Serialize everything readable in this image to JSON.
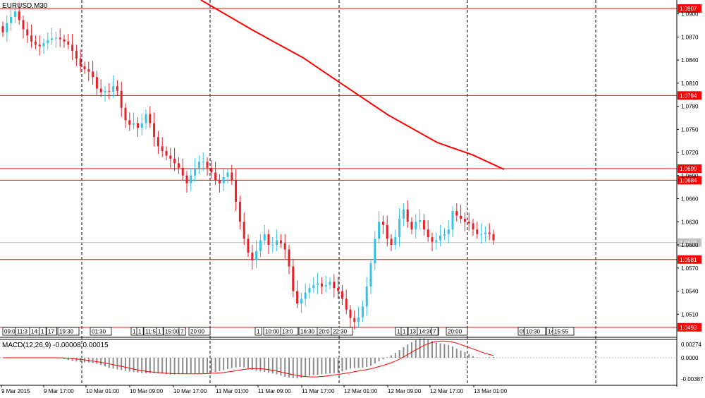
{
  "header": {
    "symbol_timeframe": "EURUSD,M30"
  },
  "macd": {
    "label": "MACD(12,26,9) -0.00008 0.00015"
  },
  "colors": {
    "bull": "#36c3e3",
    "bear": "#e8202a",
    "line": "#ff0000",
    "grid": "#000000",
    "macd_hist": "#8c8c8c",
    "macd_signal": "#ff0000"
  },
  "chart_data": {
    "type": "candlestick",
    "title": "EURUSD,M30",
    "price_scale": [
      "1.0900",
      "1.0870",
      "1.0840",
      "1.0810",
      "1.0780",
      "1.0750",
      "1.0720",
      "1.0690",
      "1.0660",
      "1.0630",
      "1.0600",
      "1.0570",
      "1.0540",
      "1.0510"
    ],
    "ylim": [
      1.048,
      1.0918
    ],
    "current_price": "1.0603",
    "horizontal_lines": [
      {
        "label": "1.0907",
        "value": 1.0907
      },
      {
        "label": "1.0794",
        "value": 1.0794
      },
      {
        "label": "1.0699",
        "value": 1.0699
      },
      {
        "label": "1.0684",
        "value": 1.0684
      },
      {
        "label": "1.0581",
        "value": 1.0581
      },
      {
        "label": "1.0493",
        "value": 1.0493
      }
    ],
    "time_labels": [
      "9 Mar 2015",
      "9 Mar 17:00",
      "10 Mar 01:00",
      "10 Mar 09:00",
      "10 Mar 17:00",
      "11 Mar 01:00",
      "11 Mar 09:00",
      "11 Mar 17:00",
      "12 Mar 01:00",
      "12 Mar 09:00",
      "12 Mar 17:00",
      "13 Mar 01:00"
    ],
    "macd_scale": [
      "0.00274",
      "0.0000",
      "-0.00387"
    ],
    "event_labels": [
      "09:00",
      "11:3",
      "14:",
      "1",
      "17",
      "19:30",
      "01:30",
      "1",
      "1",
      "11:5",
      "1",
      "15:00",
      "7",
      "20:00",
      "1",
      "10:00",
      "13:0",
      "16:30",
      "20:0",
      "22:30",
      "1",
      "1",
      "13",
      "14:30",
      "7",
      "20:00",
      "09",
      "10:30",
      "14",
      "15:55"
    ],
    "closes": [
      1.0876,
      1.0888,
      1.0896,
      1.0903,
      1.0892,
      1.088,
      1.0872,
      1.0864,
      1.086,
      1.0858,
      1.0862,
      1.0866,
      1.0868,
      1.0869,
      1.0867,
      1.0864,
      1.086,
      1.0852,
      1.0842,
      1.0832,
      1.0828,
      1.0825,
      1.0818,
      1.0803,
      1.0798,
      1.08,
      1.0799,
      1.0806,
      1.08,
      1.0778,
      1.0762,
      1.0756,
      1.0758,
      1.0752,
      1.0758,
      1.077,
      1.0758,
      1.074,
      1.0728,
      1.0722,
      1.0716,
      1.0712,
      1.0706,
      1.07,
      1.069,
      1.068,
      1.069,
      1.0698,
      1.0708,
      1.0708,
      1.07,
      1.0694,
      1.0684,
      1.068,
      1.0688,
      1.0694,
      1.0684,
      1.0656,
      1.063,
      1.0608,
      1.059,
      1.058,
      1.0592,
      1.0606,
      1.0614,
      1.06,
      1.06,
      1.0606,
      1.0602,
      1.0594,
      1.0572,
      1.054,
      1.0524,
      1.053,
      1.0538,
      1.0544,
      1.0548,
      1.055,
      1.0546,
      1.0548,
      1.0552,
      1.0544,
      1.054,
      1.053,
      1.0516,
      1.0505,
      1.05,
      1.0506,
      1.052,
      1.0546,
      1.0576,
      1.0608,
      1.063,
      1.0626,
      1.0608,
      1.06,
      1.061,
      1.0634,
      1.0646,
      1.063,
      1.062,
      1.063,
      1.0632,
      1.062,
      1.061,
      1.0604,
      1.0606,
      1.0612,
      1.0614,
      1.062,
      1.0644,
      1.0638,
      1.0634,
      1.063,
      1.0628,
      1.062,
      1.0614,
      1.0614,
      1.0616,
      1.0614,
      1.0606
    ],
    "ma_points": [
      [
        0.285,
        1.0918
      ],
      [
        0.36,
        1.0878
      ],
      [
        0.43,
        1.0843
      ],
      [
        0.48,
        1.0812
      ],
      [
        0.55,
        1.0769
      ],
      [
        0.62,
        1.0733
      ],
      [
        0.67,
        1.0717
      ],
      [
        0.715,
        1.0698
      ]
    ]
  }
}
